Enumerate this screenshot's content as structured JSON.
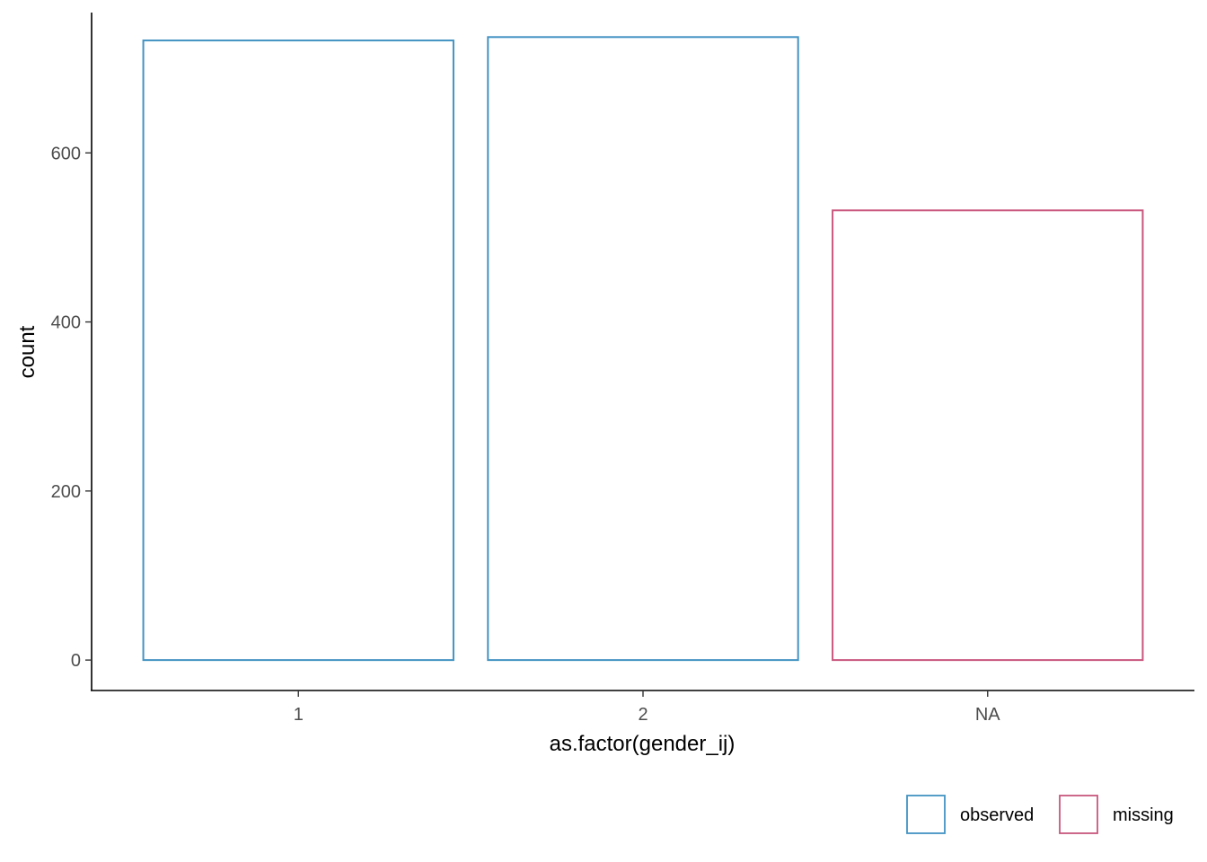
{
  "chart_data": {
    "type": "bar",
    "categories": [
      "1",
      "2",
      "NA"
    ],
    "values": [
      733,
      737,
      532
    ],
    "bar_groups": [
      "observed",
      "observed",
      "missing"
    ],
    "xlabel": "as.factor(gender_ij)",
    "ylabel": "count",
    "ylim": [
      -36,
      766
    ],
    "yticks": [
      0,
      200,
      400,
      600
    ],
    "grid": false,
    "fill": "none",
    "legend": {
      "position": "bottom-right",
      "entries": [
        {
          "label": "observed",
          "color": "#4393c3"
        },
        {
          "label": "missing",
          "color": "#c9577e"
        }
      ]
    }
  }
}
